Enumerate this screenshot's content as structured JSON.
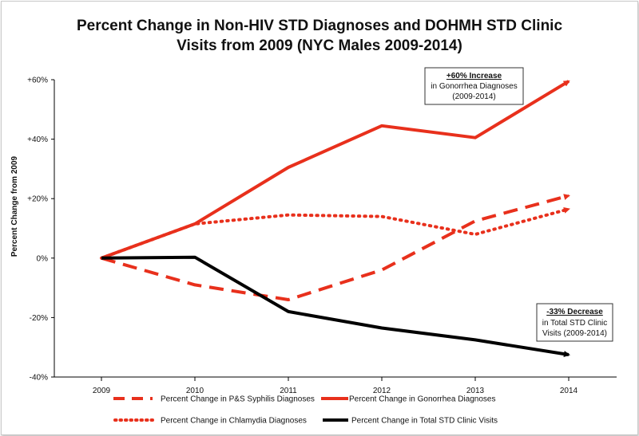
{
  "chart_data": {
    "type": "line",
    "title_lines": [
      "Percent Change in Non-HIV STD Diagnoses and DOHMH STD Clinic",
      "Visits from 2009 (NYC Males 2009-2014)"
    ],
    "ylabel": "Percent Change from 2009",
    "xlabel": "",
    "categories": [
      "2009",
      "2010",
      "2011",
      "2012",
      "2013",
      "2014"
    ],
    "ylim": [
      -40,
      60
    ],
    "yticks": [
      {
        "value": 60,
        "label": "+60%"
      },
      {
        "value": 40,
        "label": "+40%"
      },
      {
        "value": 20,
        "label": "+20%"
      },
      {
        "value": 0,
        "label": "0%"
      },
      {
        "value": -20,
        "label": "-20%"
      },
      {
        "value": -40,
        "label": "-40%"
      }
    ],
    "series": [
      {
        "name": "Percent Change in P&S Syphilis Diagnoses",
        "values": [
          0,
          -9,
          -14,
          -4,
          12.5,
          21
        ],
        "color": "#e8301c",
        "style": "dashed"
      },
      {
        "name": "Percent Change in Gonorrhea Diagnoses",
        "values": [
          0,
          11.5,
          30.5,
          44.5,
          40.5,
          59.5
        ],
        "color": "#e8301c",
        "style": "solid"
      },
      {
        "name": "Percent Change in Chlamydia Diagnoses",
        "values": [
          0,
          11.5,
          14.5,
          14,
          8,
          16.5
        ],
        "color": "#e8301c",
        "style": "dotted"
      },
      {
        "name": "Percent Change in Total STD Clinic Visits",
        "values": [
          0,
          0.3,
          -18,
          -23.5,
          -27.5,
          -32.5
        ],
        "color": "#000000",
        "style": "solid"
      }
    ],
    "annotations": [
      {
        "heading": "+60% Increase",
        "lines": [
          "in Gonorrhea Diagnoses",
          "(2009-2014)"
        ]
      },
      {
        "heading": "-33% Decrease",
        "lines": [
          "in Total STD Clinic",
          "Visits (2009-2014)"
        ]
      }
    ]
  }
}
